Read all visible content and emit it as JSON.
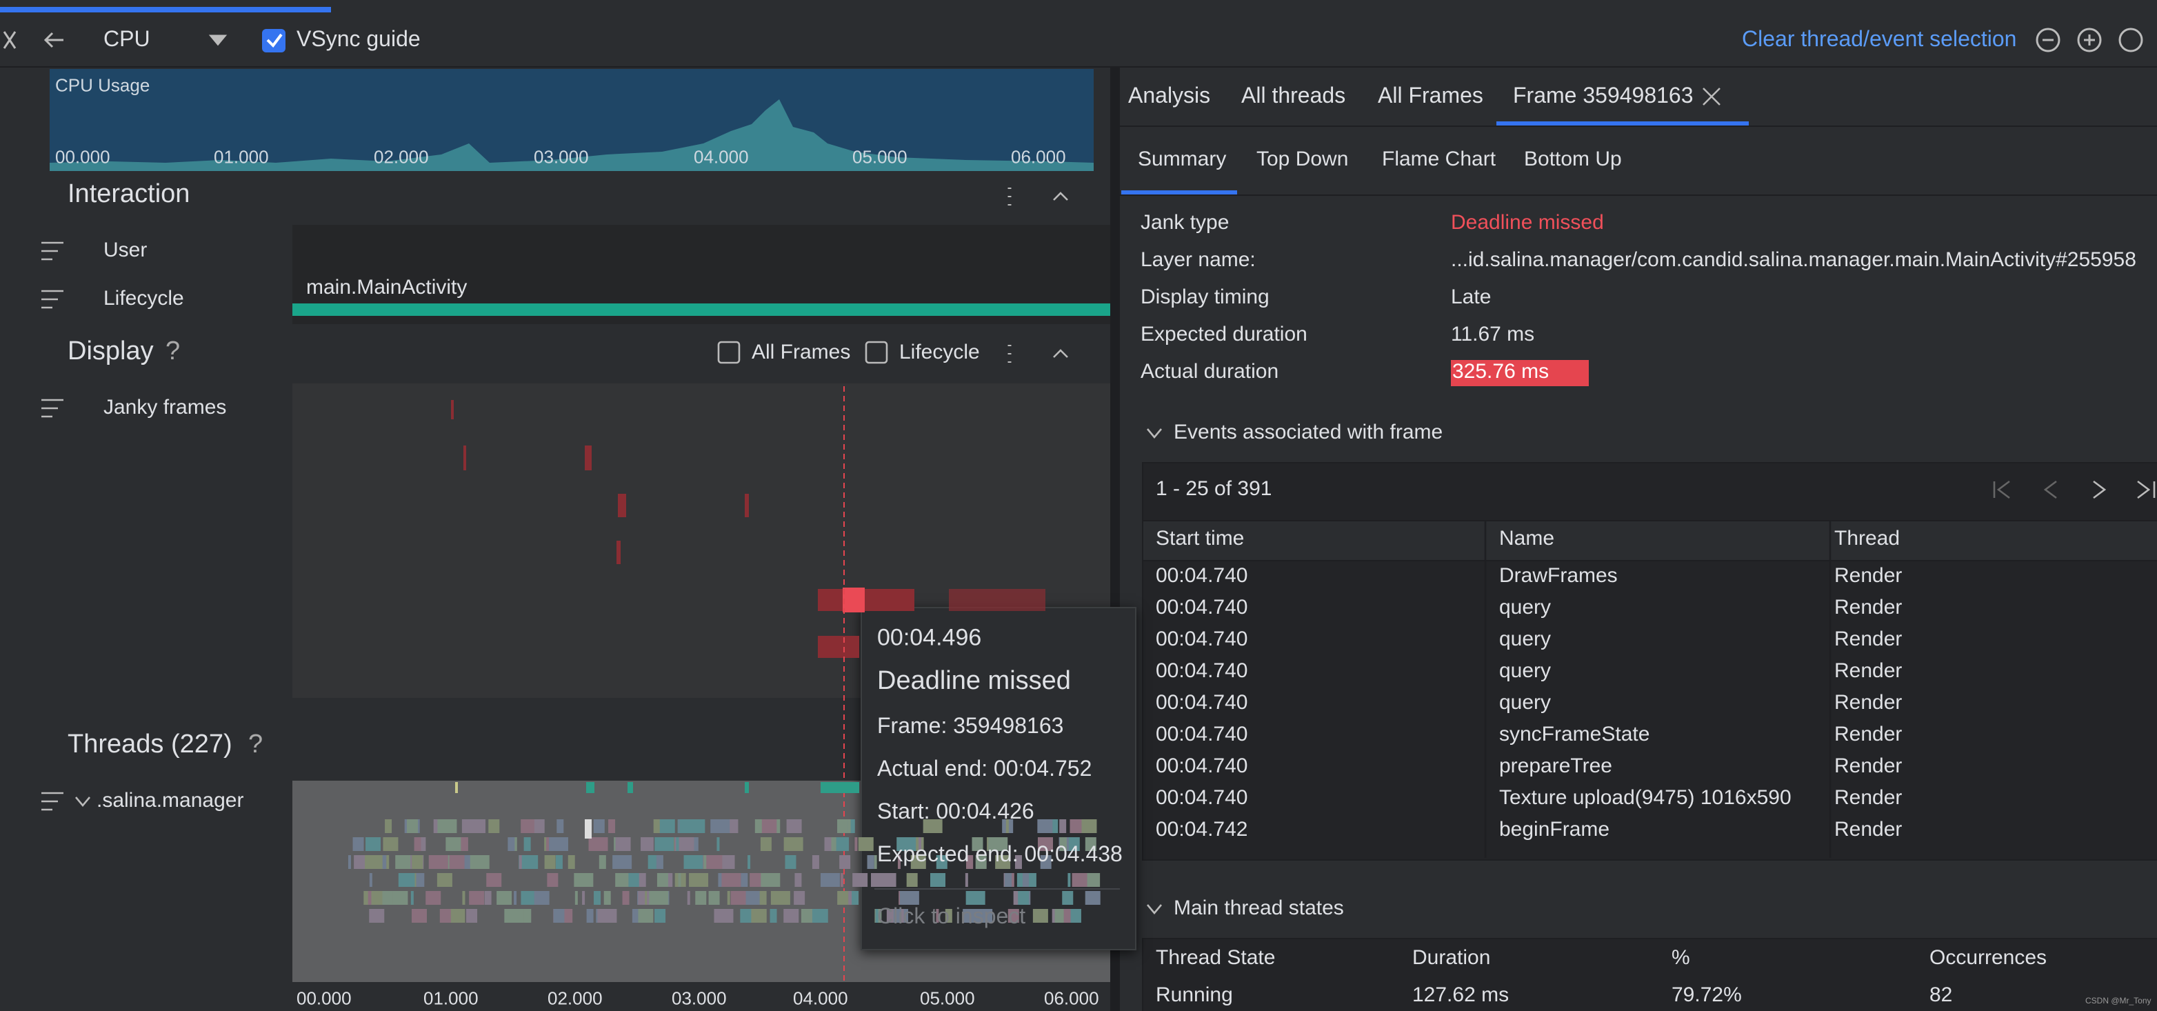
{
  "toolbar": {
    "device": "CPU",
    "vsync": "VSync guide",
    "clear": "Clear thread/event selection"
  },
  "cpu_usage": {
    "label": "CPU Usage",
    "ticks": [
      "00.000",
      "01.000",
      "02.000",
      "03.000",
      "04.000",
      "05.000",
      "06.000"
    ]
  },
  "interaction": {
    "title": "Interaction",
    "tracks": [
      "User",
      "Lifecycle"
    ],
    "lifecycle_event": "main.MainActivity"
  },
  "display": {
    "title": "Display",
    "help": "?",
    "options": [
      "All Frames",
      "Lifecycle"
    ],
    "track": "Janky frames"
  },
  "threads": {
    "title": "Threads (227)",
    "help": "?",
    "process": ".salina.manager",
    "ticks": [
      "00.000",
      "01.000",
      "02.000",
      "03.000",
      "04.000",
      "05.000",
      "06.000"
    ]
  },
  "tooltip": {
    "time": "00:04.496",
    "title": "Deadline missed",
    "lines": [
      "Frame: 359498163",
      "Actual end: 00:04.752",
      "Start: 00:04.426",
      "Expected end: 00:04.438"
    ],
    "action": "Click to inspect"
  },
  "tabs": [
    "Analysis",
    "All threads",
    "All Frames",
    "Frame 359498163"
  ],
  "subtabs": [
    "Summary",
    "Top Down",
    "Flame Chart",
    "Bottom Up"
  ],
  "summary": [
    [
      "Jank type",
      "Deadline missed"
    ],
    [
      "Layer name:",
      "...id.salina.manager/com.candid.salina.manager.main.MainActivity#255958"
    ],
    [
      "Display timing",
      "Late"
    ],
    [
      "Expected duration",
      "11.67 ms"
    ],
    [
      "Actual duration",
      "325.76 ms"
    ]
  ],
  "events": {
    "title": "Events associated with frame",
    "pagination": "1 - 25 of 391",
    "columns": [
      "Start time",
      "Name",
      "Thread"
    ],
    "rows": [
      [
        "00:04.740",
        "DrawFrames",
        "Render"
      ],
      [
        "00:04.740",
        "query",
        "Render"
      ],
      [
        "00:04.740",
        "query",
        "Render"
      ],
      [
        "00:04.740",
        "query",
        "Render"
      ],
      [
        "00:04.740",
        "query",
        "Render"
      ],
      [
        "00:04.740",
        "syncFrameState",
        "Render"
      ],
      [
        "00:04.740",
        "prepareTree",
        "Render"
      ],
      [
        "00:04.740",
        "Texture upload(9475) 1016x590",
        "Render"
      ],
      [
        "00:04.742",
        "beginFrame",
        "Render"
      ]
    ]
  },
  "main_thread_states": {
    "title": "Main thread states",
    "columns": [
      "Thread State",
      "Duration",
      "%",
      "Occurrences"
    ],
    "rows": [
      [
        "Running",
        "127.62 ms",
        "79.72%",
        "82"
      ]
    ]
  },
  "watermark": "CSDN @Mr_Tony"
}
